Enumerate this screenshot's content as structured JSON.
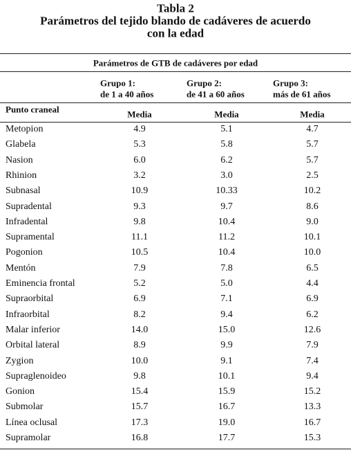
{
  "title_lines": [
    "Tabla 2",
    "Parámetros del tejido blando de cadáveres de acuerdo",
    "con la edad"
  ],
  "table": {
    "caption": "Parámetros de GTB de cadáveres por edad",
    "groups": [
      [
        "Grupo 1:",
        "de 1 a 40 años"
      ],
      [
        "Grupo 2:",
        "de 41 a 60 años"
      ],
      [
        "Grupo 3:",
        "más de 61 años"
      ]
    ],
    "row_header": "Punto craneal",
    "column_headers": [
      "Media",
      "Media",
      "Media"
    ],
    "rows": [
      [
        "Metopion",
        "4.9",
        "5.1",
        "4.7"
      ],
      [
        "Glabela",
        "5.3",
        "5.8",
        "5.7"
      ],
      [
        "Nasion",
        "6.0",
        "6.2",
        "5.7"
      ],
      [
        "Rhinion",
        "3.2",
        "3.0",
        "2.5"
      ],
      [
        "Subnasal",
        "10.9",
        "10.33",
        "10.2"
      ],
      [
        "Supradental",
        "9.3",
        "9.7",
        "8.6"
      ],
      [
        "Infradental",
        "9.8",
        "10.4",
        "9.0"
      ],
      [
        "Supramental",
        "11.1",
        "11.2",
        "10.1"
      ],
      [
        "Pogonion",
        "10.5",
        "10.4",
        "10.0"
      ],
      [
        "Mentón",
        "7.9",
        "7.8",
        "6.5"
      ],
      [
        "Eminencia frontal",
        "5.2",
        "5.0",
        "4.4"
      ],
      [
        "Supraorbital",
        "6.9",
        "7.1",
        "6.9"
      ],
      [
        "Infraorbital",
        "8.2",
        "9.4",
        "6.2"
      ],
      [
        "Malar inferior",
        "14.0",
        "15.0",
        "12.6"
      ],
      [
        "Orbital lateral",
        "8.9",
        "9.9",
        "7.9"
      ],
      [
        "Zygion",
        "10.0",
        "9.1",
        "7.4"
      ],
      [
        "Supraglenoideo",
        "9.8",
        "10.1",
        "9.4"
      ],
      [
        "Gonion",
        "15.4",
        "15.9",
        "15.2"
      ],
      [
        "Submolar",
        "15.7",
        "16.7",
        "13.3"
      ],
      [
        "Línea oclusal",
        "17.3",
        "19.0",
        "16.7"
      ],
      [
        "Supramolar",
        "16.8",
        "17.7",
        "15.3"
      ]
    ]
  }
}
